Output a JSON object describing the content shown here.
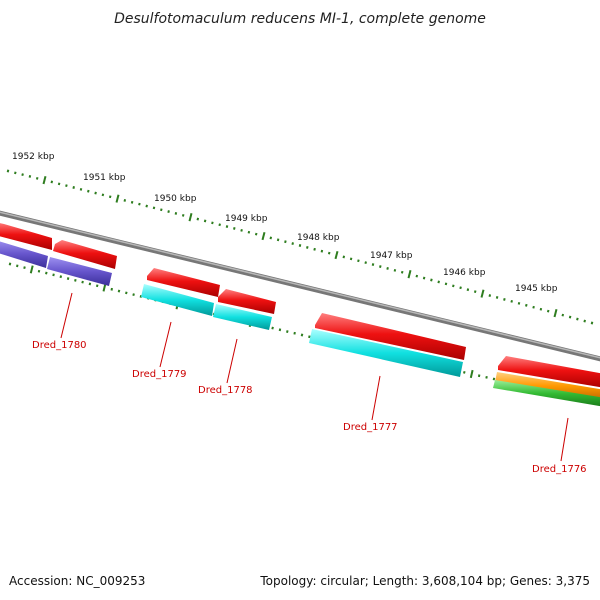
{
  "title": "Desulfotomaculum reducens MI-1, complete genome",
  "footer": {
    "accession": "Accession: NC_009253",
    "topology": "Topology: circular; Length: 3,608,104 bp; Genes: 3,375"
  },
  "colors": {
    "backbone": "#888888",
    "tick": "#2e7d1f",
    "gene_label": "#cc0000",
    "cds_forward": "#ee1111",
    "track_blue": "#6655cc",
    "track_cyan": "#11dddd",
    "track_orange": "#ff9900",
    "track_green": "#33bb33"
  },
  "kbp_labels": [
    "1952 kbp",
    "1951 kbp",
    "1950 kbp",
    "1949 kbp",
    "1948 kbp",
    "1947 kbp",
    "1946 kbp",
    "1945 kbp"
  ],
  "genes": [
    {
      "name": "Dred_1780"
    },
    {
      "name": "Dred_1779"
    },
    {
      "name": "Dred_1778"
    },
    {
      "name": "Dred_1777"
    },
    {
      "name": "Dred_1776"
    }
  ]
}
